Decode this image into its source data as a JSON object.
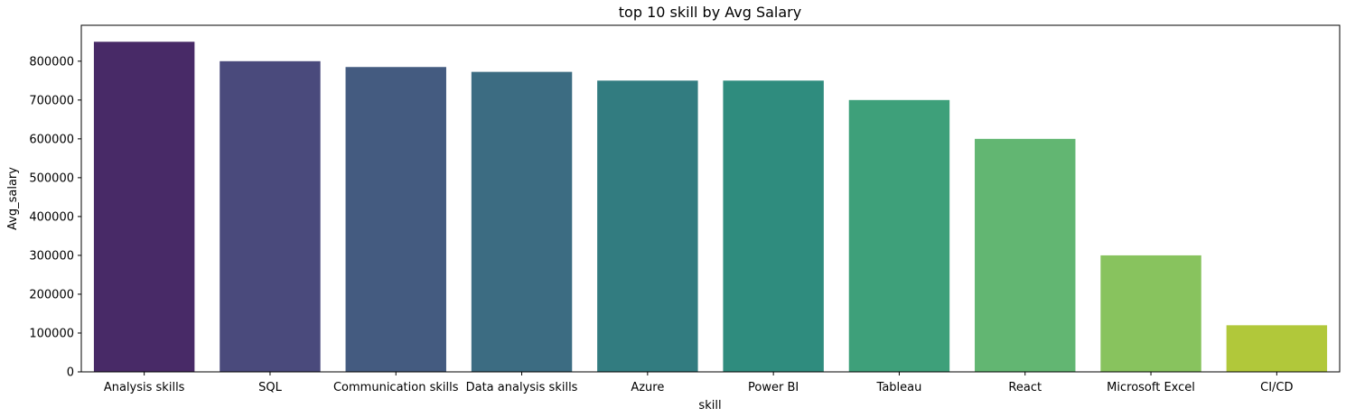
{
  "chart_data": {
    "type": "bar",
    "title": "top 10 skill by Avg Salary",
    "xlabel": "skill",
    "ylabel": "Avg_salary",
    "categories": [
      "Analysis skills",
      "SQL",
      "Communication skills",
      "Data analysis skills",
      "Azure",
      "Power BI",
      "Tableau",
      "React",
      "Microsoft Excel",
      "CI/CD"
    ],
    "values": [
      850000,
      800000,
      785000,
      772500,
      750000,
      750000,
      700000,
      600000,
      300000,
      120000
    ],
    "colors": [
      "#482a67",
      "#4a4a7c",
      "#445b80",
      "#3c6c82",
      "#327c80",
      "#2f8c7e",
      "#3ea07a",
      "#62b672",
      "#88c35e",
      "#b1c83a"
    ],
    "ylim": [
      0,
      892500
    ],
    "yticks": [
      0,
      100000,
      200000,
      300000,
      400000,
      500000,
      600000,
      700000,
      800000
    ],
    "grid": false,
    "legend": "none"
  }
}
